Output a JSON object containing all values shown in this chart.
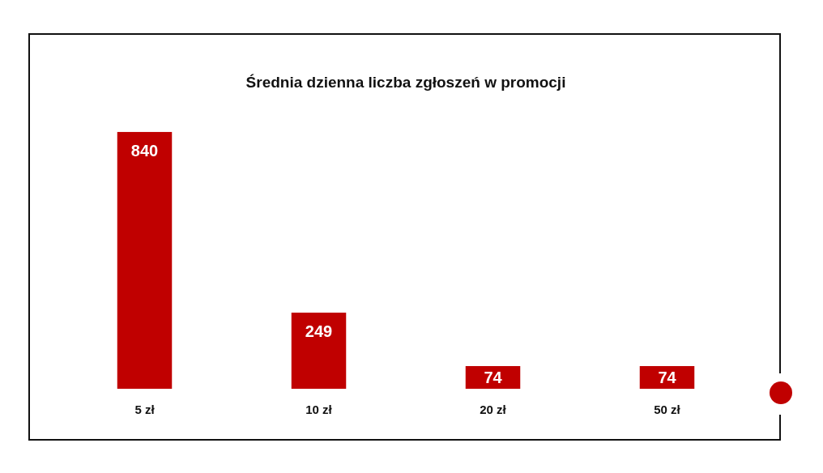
{
  "chart_data": {
    "type": "bar",
    "title": "Średnia dzienna liczba zgłoszeń w promocji",
    "categories": [
      "5 zł",
      "10 zł",
      "20 zł",
      "50 zł"
    ],
    "values": [
      840,
      249,
      74,
      74
    ],
    "color": "#c00000",
    "data_labels": true
  }
}
